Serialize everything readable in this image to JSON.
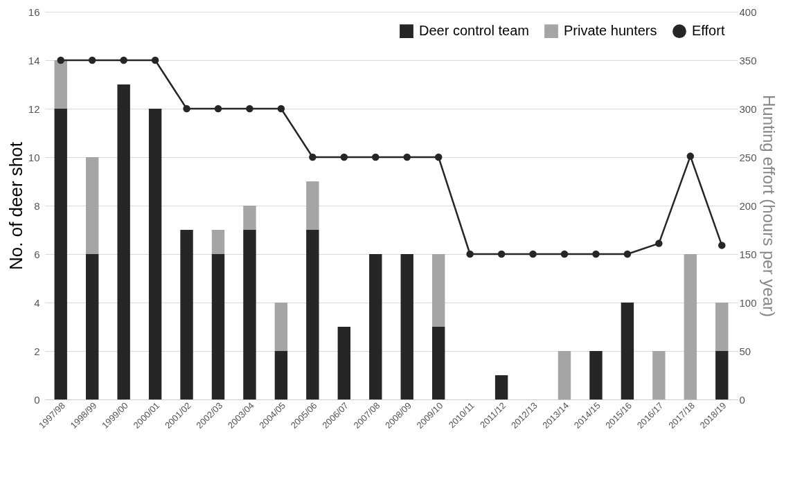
{
  "chart_data": {
    "type": "bar",
    "stacked": true,
    "ylabel": "No. of deer shot",
    "y2label": "Hunting effort (hours per year)",
    "categories": [
      "1997/98",
      "1998/99",
      "1999/00",
      "2000/01",
      "2001/02",
      "2002/03",
      "2003/04",
      "2004/05",
      "2005/06",
      "2006/07",
      "2007/08",
      "2008/09",
      "2009/10",
      "2010/11",
      "2011/12",
      "2012/13",
      "2013/14",
      "2014/15",
      "2015/16",
      "2016/17",
      "2017/18",
      "2018/19"
    ],
    "series": [
      {
        "name": "Deer control team",
        "color": "#262626",
        "values": [
          12,
          6,
          13,
          12,
          7,
          6,
          7,
          2,
          7,
          3,
          6,
          6,
          3,
          0,
          1,
          0,
          0,
          2,
          4,
          0,
          0,
          2
        ]
      },
      {
        "name": "Private hunters",
        "color": "#a5a5a5",
        "values": [
          2,
          4,
          0,
          0,
          0,
          1,
          1,
          2,
          2,
          0,
          0,
          0,
          3,
          0,
          0,
          0,
          2,
          0,
          0,
          2,
          6,
          2
        ]
      },
      {
        "name": "Effort",
        "color": "#262626",
        "type": "line",
        "axis": "y2",
        "values": [
          350,
          350,
          350,
          350,
          300,
          300,
          300,
          300,
          250,
          250,
          250,
          250,
          250,
          150,
          150,
          150,
          150,
          150,
          150,
          161,
          251,
          159
        ]
      }
    ],
    "ylim": [
      0,
      16
    ],
    "yticks": [
      0,
      2,
      4,
      6,
      8,
      10,
      12,
      14,
      16
    ],
    "y2lim": [
      0,
      400
    ],
    "y2ticks": [
      0,
      50,
      100,
      150,
      200,
      250,
      300,
      350,
      400
    ],
    "grid": "y",
    "legend": "top right",
    "marker": "circle",
    "line_style": "solid"
  }
}
